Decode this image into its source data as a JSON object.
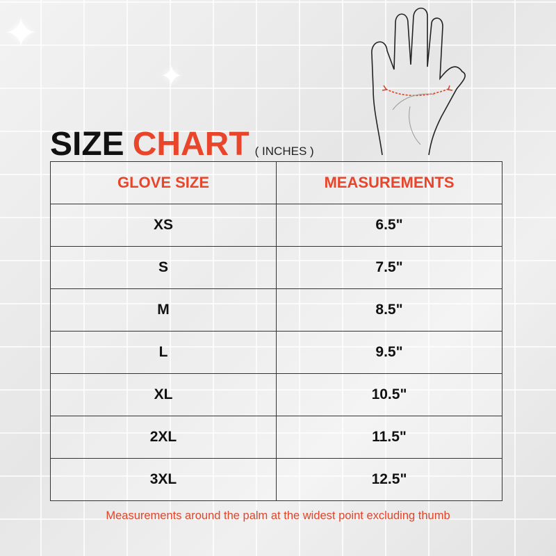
{
  "title": {
    "word1": "SIZE",
    "word2": "CHART",
    "unit": "( INCHES )"
  },
  "colors": {
    "accent": "#e8452a",
    "text": "#111111"
  },
  "illustration": "hand-palm-measurement",
  "table": {
    "headers": [
      "GLOVE SIZE",
      "MEASUREMENTS"
    ],
    "rows": [
      {
        "size": "XS",
        "measurement": "6.5\""
      },
      {
        "size": "S",
        "measurement": "7.5\""
      },
      {
        "size": "M",
        "measurement": "8.5\""
      },
      {
        "size": "L",
        "measurement": "9.5\""
      },
      {
        "size": "XL",
        "measurement": "10.5\""
      },
      {
        "size": "2XL",
        "measurement": "11.5\""
      },
      {
        "size": "3XL",
        "measurement": "12.5\""
      }
    ]
  },
  "note": "Measurements around the palm at the widest point excluding thumb"
}
